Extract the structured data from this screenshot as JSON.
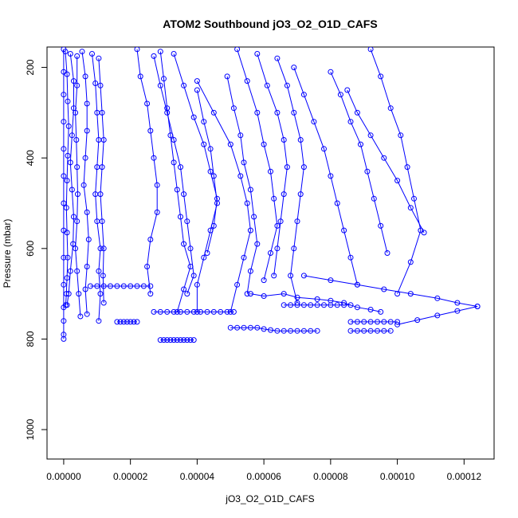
{
  "chart_data": {
    "type": "scatter",
    "title": "ATOM2 Southbound jO3_O2_O1D_CAFS",
    "xlabel": "jO3_O2_O1D_CAFS",
    "ylabel": "Pressure (mbar)",
    "xlim": [
      -5e-06,
      0.000129
    ],
    "ylim": [
      1065,
      155
    ],
    "y_reversed": true,
    "grid": false,
    "legend": "none",
    "marker": "open-circle",
    "x_ticks": [
      0,
      2e-05,
      4e-05,
      6e-05,
      8e-05,
      0.0001,
      0.00012
    ],
    "x_tick_labels": [
      "0.00000",
      "0.00002",
      "0.00004",
      "0.00006",
      "0.00008",
      "0.00010",
      "0.00012"
    ],
    "y_ticks": [
      200,
      400,
      600,
      800,
      1000
    ],
    "y_tick_labels": [
      "200",
      "400",
      "600",
      "800",
      "1000"
    ],
    "colors": {
      "series": "#0000ff",
      "axis": "#000000",
      "background": "#ffffff"
    },
    "series": [
      {
        "x": [
          0.0,
          0.0,
          0.0,
          0.0,
          0.0,
          0.0,
          0.0,
          0.0,
          0.0,
          0.0,
          0.0,
          0.0,
          0.0,
          0.0
        ],
        "y": [
          160,
          210,
          260,
          320,
          380,
          440,
          500,
          560,
          620,
          680,
          730,
          760,
          790,
          800
        ]
      },
      {
        "x": [
          5e-07,
          1e-06,
          1.2e-06,
          1.5e-06,
          1.2e-06,
          1e-06,
          8e-07,
          1e-06,
          1.2e-06,
          1e-06,
          8e-07,
          6e-07
        ],
        "y": [
          165,
          215,
          275,
          330,
          395,
          450,
          510,
          565,
          620,
          665,
          700,
          725
        ]
      },
      {
        "x": [
          2e-06,
          3e-06,
          3e-06,
          2.5e-06,
          2e-06,
          2.5e-06,
          3e-06,
          2.8e-06,
          2e-06,
          1.5e-06,
          1e-06
        ],
        "y": [
          170,
          230,
          290,
          350,
          410,
          470,
          530,
          590,
          650,
          700,
          725
        ]
      },
      {
        "x": [
          4e-06,
          4e-06,
          3.5e-06,
          3.8e-06,
          4e-06,
          4.2e-06,
          4e-06,
          3.5e-06,
          4e-06,
          4.5e-06,
          5e-06
        ],
        "y": [
          175,
          240,
          300,
          360,
          420,
          480,
          540,
          600,
          650,
          700,
          750
        ]
      },
      {
        "x": [
          5.5e-06,
          6.5e-06,
          7e-06,
          7e-06,
          6.5e-06,
          6e-06,
          7e-06,
          7.5e-06,
          7e-06,
          6.5e-06,
          7e-06
        ],
        "y": [
          165,
          220,
          280,
          340,
          400,
          460,
          520,
          580,
          640,
          690,
          745
        ]
      },
      {
        "x": [
          8.5e-06,
          9.5e-06,
          1e-05,
          1.05e-05,
          1e-05,
          9.5e-06,
          1e-05,
          1.1e-05,
          1.05e-05,
          1.1e-05,
          1.05e-05
        ],
        "y": [
          170,
          235,
          300,
          360,
          420,
          480,
          540,
          600,
          650,
          700,
          760
        ]
      },
      {
        "x": [
          1.05e-05,
          1.1e-05,
          1.15e-05,
          1.2e-05,
          1.15e-05,
          1.1e-05,
          1.15e-05,
          1.2e-05,
          1.18e-05,
          1.2e-05
        ],
        "y": [
          180,
          240,
          300,
          360,
          420,
          480,
          540,
          600,
          660,
          720
        ]
      },
      {
        "x": [
          8e-06,
          1e-05,
          1.2e-05,
          1.4e-05,
          1.6e-05,
          1.8e-05,
          2e-05,
          2.2e-05,
          2.4e-05,
          2.6e-05
        ],
        "y": [
          683,
          683,
          683,
          683,
          683,
          683,
          683,
          683,
          683,
          683
        ]
      },
      {
        "x": [
          1.6e-05,
          1.7e-05,
          1.8e-05,
          1.9e-05,
          2e-05,
          2.1e-05,
          2.2e-05
        ],
        "y": [
          762,
          762,
          762,
          762,
          762,
          762,
          762
        ]
      },
      {
        "x": [
          2.9e-05,
          3e-05,
          3.1e-05,
          3.2e-05,
          3.3e-05,
          3.4e-05,
          3.5e-05,
          3.6e-05,
          3.7e-05,
          3.8e-05,
          3.9e-05
        ],
        "y": [
          802,
          802,
          802,
          802,
          802,
          802,
          802,
          802,
          802,
          802,
          802
        ]
      },
      {
        "x": [
          2.7e-05,
          2.9e-05,
          3.1e-05,
          3.3e-05,
          3.5e-05,
          3.7e-05,
          3.9e-05,
          4.1e-05,
          4.3e-05,
          4.5e-05,
          4.7e-05,
          4.9e-05,
          5.1e-05
        ],
        "y": [
          740,
          740,
          740,
          740,
          740,
          740,
          740,
          740,
          740,
          740,
          740,
          740,
          740
        ]
      },
      {
        "x": [
          5e-05,
          5.2e-05,
          5.4e-05,
          5.6e-05,
          5.8e-05,
          6e-05,
          6.2e-05,
          6.4e-05,
          6.6e-05,
          6.8e-05,
          7e-05,
          7.2e-05,
          7.4e-05,
          7.6e-05
        ],
        "y": [
          775,
          775,
          775,
          775,
          775,
          778,
          780,
          782,
          782,
          782,
          782,
          782,
          782,
          782
        ]
      },
      {
        "x": [
          6.6e-05,
          6.8e-05,
          7e-05,
          7.2e-05,
          7.4e-05,
          7.6e-05,
          7.8e-05,
          8e-05,
          8.2e-05,
          8.4e-05,
          8.6e-05
        ],
        "y": [
          725,
          725,
          725,
          725,
          725,
          725,
          725,
          725,
          725,
          725,
          725
        ]
      },
      {
        "x": [
          8.6e-05,
          8.8e-05,
          9e-05,
          9.2e-05,
          9.4e-05,
          9.6e-05,
          9.8e-05,
          0.0001
        ],
        "y": [
          762,
          762,
          762,
          762,
          762,
          762,
          762,
          762
        ]
      },
      {
        "x": [
          8.6e-05,
          8.8e-05,
          9e-05,
          9.2e-05,
          9.4e-05,
          9.6e-05,
          9.8e-05
        ],
        "y": [
          782,
          782,
          782,
          782,
          782,
          782,
          782
        ]
      },
      {
        "x": [
          2.2e-05,
          2.3e-05,
          2.5e-05,
          2.6e-05,
          2.7e-05,
          2.8e-05,
          2.8e-05,
          2.6e-05,
          2.5e-05,
          2.6e-05
        ],
        "y": [
          160,
          220,
          280,
          340,
          400,
          460,
          520,
          580,
          640,
          700
        ]
      },
      {
        "x": [
          2.9e-05,
          3e-05,
          3.1e-05,
          3.2e-05,
          3.3e-05,
          3.4e-05,
          3.5e-05,
          3.6e-05,
          3.8e-05,
          3.6e-05,
          3.4e-05
        ],
        "y": [
          165,
          225,
          290,
          350,
          410,
          470,
          530,
          590,
          640,
          690,
          740
        ]
      },
      {
        "x": [
          2.7e-05,
          2.9e-05,
          3.1e-05,
          3.3e-05,
          3.5e-05,
          3.6e-05,
          3.7e-05,
          3.8e-05,
          3.9e-05,
          3.7e-05
        ],
        "y": [
          175,
          240,
          300,
          360,
          420,
          480,
          540,
          600,
          660,
          700
        ]
      },
      {
        "x": [
          3.3e-05,
          3.6e-05,
          3.9e-05,
          4.2e-05,
          4.4e-05,
          4.6e-05,
          4.5e-05,
          4.3e-05
        ],
        "y": [
          170,
          240,
          310,
          370,
          430,
          490,
          550,
          610
        ]
      },
      {
        "x": [
          4e-05,
          4.2e-05,
          4.4e-05,
          4.5e-05,
          4.6e-05,
          4.4e-05,
          4.2e-05,
          4e-05,
          4e-05
        ],
        "y": [
          250,
          320,
          380,
          440,
          500,
          560,
          620,
          680,
          740
        ]
      },
      {
        "x": [
          4e-05,
          4.5e-05,
          5e-05,
          5.3e-05,
          5.5e-05,
          5.6e-05,
          5.4e-05,
          5.2e-05,
          5e-05
        ],
        "y": [
          230,
          300,
          370,
          440,
          500,
          560,
          620,
          680,
          740
        ]
      },
      {
        "x": [
          4.9e-05,
          5.1e-05,
          5.3e-05,
          5.4e-05,
          5.6e-05,
          5.7e-05,
          5.8e-05,
          5.6e-05,
          5.5e-05
        ],
        "y": [
          220,
          290,
          350,
          410,
          470,
          530,
          590,
          650,
          700
        ]
      },
      {
        "x": [
          5.2e-05,
          5.5e-05,
          5.8e-05,
          6e-05,
          6.2e-05,
          6.3e-05,
          6.4e-05,
          6.2e-05,
          6e-05
        ],
        "y": [
          160,
          230,
          300,
          370,
          430,
          490,
          550,
          610,
          670
        ]
      },
      {
        "x": [
          5.8e-05,
          6.1e-05,
          6.4e-05,
          6.6e-05,
          6.7e-05,
          6.6e-05,
          6.5e-05,
          6.4e-05,
          6.3e-05
        ],
        "y": [
          170,
          240,
          300,
          360,
          420,
          480,
          540,
          600,
          660
        ]
      },
      {
        "x": [
          6.4e-05,
          6.7e-05,
          6.9e-05,
          7.1e-05,
          7.2e-05,
          7.1e-05,
          7e-05,
          6.9e-05,
          6.8e-05,
          7e-05
        ],
        "y": [
          180,
          240,
          300,
          360,
          420,
          480,
          540,
          600,
          660,
          720
        ]
      },
      {
        "x": [
          6.9e-05,
          7.2e-05,
          7.5e-05,
          7.8e-05,
          8e-05,
          8.2e-05,
          8.4e-05,
          8.6e-05,
          8.8e-05
        ],
        "y": [
          200,
          260,
          320,
          380,
          440,
          500,
          560,
          620,
          680
        ]
      },
      {
        "x": [
          8e-05,
          8.3e-05,
          8.6e-05,
          8.9e-05,
          9.1e-05,
          9.3e-05,
          9.5e-05,
          9.7e-05
        ],
        "y": [
          210,
          260,
          320,
          370,
          430,
          490,
          550,
          610
        ]
      },
      {
        "x": [
          8.5e-05,
          8.8e-05,
          9.2e-05,
          9.6e-05,
          0.0001,
          0.000104,
          0.000108
        ],
        "y": [
          250,
          300,
          350,
          400,
          450,
          510,
          565
        ]
      },
      {
        "x": [
          9.2e-05,
          9.5e-05,
          9.8e-05,
          0.000101,
          0.000103,
          0.000105,
          0.000107,
          0.000104,
          0.0001
        ],
        "y": [
          160,
          220,
          290,
          350,
          420,
          490,
          560,
          630,
          700
        ]
      },
      {
        "x": [
          7.2e-05,
          8e-05,
          8.8e-05,
          9.6e-05,
          0.000104,
          0.000112,
          0.000118,
          0.000124
        ],
        "y": [
          660,
          670,
          680,
          690,
          700,
          710,
          720,
          728
        ]
      },
      {
        "x": [
          0.000124,
          0.000118,
          0.000112,
          0.000106,
          0.0001
        ],
        "y": [
          728,
          738,
          748,
          758,
          768
        ]
      },
      {
        "x": [
          5.6e-05,
          6e-05,
          6.6e-05,
          7e-05,
          7.6e-05,
          8e-05,
          8.4e-05,
          8.8e-05,
          9.2e-05,
          9.5e-05
        ],
        "y": [
          700,
          705,
          700,
          708,
          712,
          715,
          720,
          730,
          735,
          740
        ]
      }
    ]
  }
}
